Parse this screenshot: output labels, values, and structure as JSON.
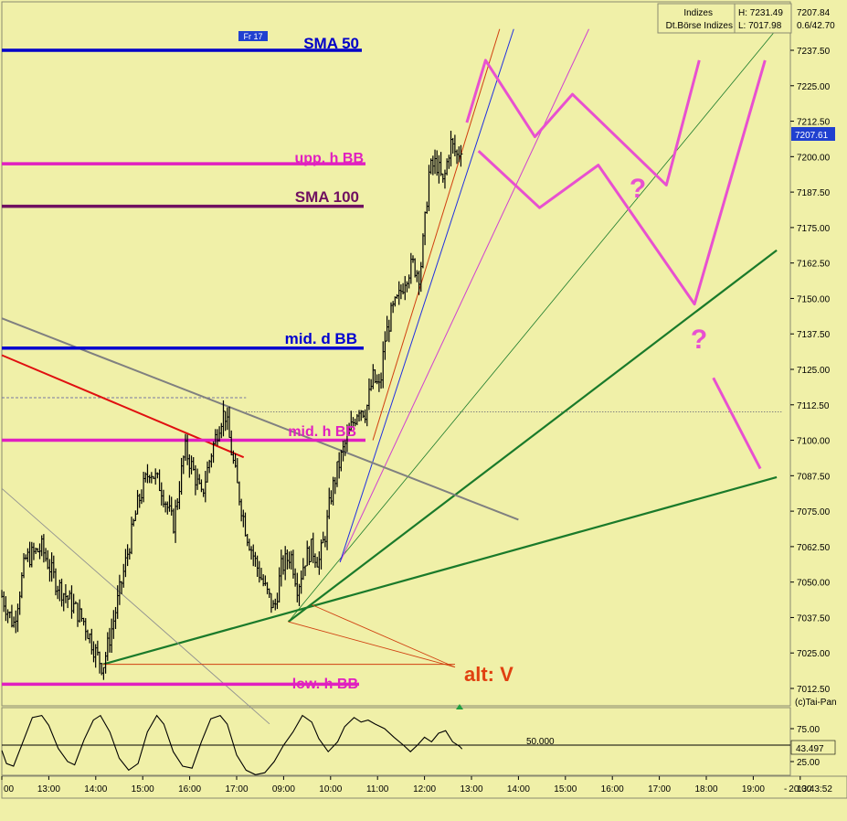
{
  "header": {
    "instrument": "Indizes",
    "exchange": "Dt.Börse Indizes",
    "high": "H: 7231.49",
    "low": "L: 7017.98",
    "last": "7207.84",
    "change": "0.6/42.70",
    "day_marker": "Fr 17",
    "credit": "(c)Tai-Pan",
    "clock": "13:43:52",
    "axis_dash": "-"
  },
  "colors": {
    "background": "#f0f0a8",
    "sma50": "#0000c8",
    "sma100": "#701060",
    "bollinger_hourly": "#e020c0",
    "bollinger_daily": "#0000d0",
    "scenario": "#e850d0",
    "trend_green": "#1a7a2a",
    "alt_v": "#e04010",
    "price": "#000000"
  },
  "chart_data": [
    {
      "type": "candlestick",
      "xlabel": "",
      "ylabel": "",
      "y_ticks": [
        7237.5,
        7225.0,
        7212.5,
        7200.0,
        7187.5,
        7175.0,
        7162.5,
        7150.0,
        7137.5,
        7125.0,
        7112.5,
        7100.0,
        7087.5,
        7075.0,
        7062.5,
        7050.0,
        7037.5,
        7025.0,
        7012.5
      ],
      "ylim": [
        7006,
        7242
      ],
      "x_ticks": [
        "00",
        "13:00",
        "14:00",
        "15:00",
        "16:00",
        "17:00",
        "09:00",
        "10:00",
        "11:00",
        "12:00",
        "13:00",
        "14:00",
        "15:00",
        "16:00",
        "17:00",
        "18:00",
        "19:00",
        "20:00"
      ],
      "current_price": "7207.61",
      "current_price_value": 7207.61,
      "price_path": [
        [
          0.0,
          7045
        ],
        [
          0.5,
          7035
        ],
        [
          1.0,
          7058
        ],
        [
          1.7,
          7062
        ],
        [
          2.3,
          7050
        ],
        [
          3.0,
          7042
        ],
        [
          3.5,
          7036
        ],
        [
          4.0,
          7025
        ],
        [
          4.3,
          7020
        ],
        [
          4.8,
          7038
        ],
        [
          5.3,
          7058
        ],
        [
          5.8,
          7078
        ],
        [
          6.3,
          7090
        ],
        [
          6.8,
          7083
        ],
        [
          7.3,
          7070
        ],
        [
          7.8,
          7097
        ],
        [
          8.2,
          7088
        ],
        [
          8.5,
          7080
        ],
        [
          8.9,
          7095
        ],
        [
          9.3,
          7107
        ],
        [
          9.5,
          7110
        ],
        [
          10.0,
          7085
        ],
        [
          10.4,
          7068
        ],
        [
          10.8,
          7057
        ],
        [
          11.2,
          7048
        ],
        [
          11.6,
          7040
        ],
        [
          11.9,
          7055
        ],
        [
          12.3,
          7060
        ],
        [
          12.6,
          7048
        ],
        [
          12.9,
          7058
        ],
        [
          13.2,
          7062
        ],
        [
          13.5,
          7057
        ],
        [
          13.8,
          7068
        ],
        [
          14.0,
          7080
        ],
        [
          14.3,
          7090
        ],
        [
          14.6,
          7098
        ],
        [
          14.9,
          7105
        ],
        [
          15.2,
          7112
        ],
        [
          15.5,
          7110
        ],
        [
          15.8,
          7122
        ],
        [
          16.1,
          7118
        ],
        [
          16.3,
          7135
        ],
        [
          16.6,
          7145
        ],
        [
          16.9,
          7150
        ],
        [
          17.2,
          7158
        ],
        [
          17.5,
          7162
        ],
        [
          17.8,
          7158
        ],
        [
          18.0,
          7175
        ],
        [
          18.2,
          7195
        ],
        [
          18.5,
          7198
        ],
        [
          18.8,
          7190
        ],
        [
          19.1,
          7205
        ],
        [
          19.4,
          7200
        ],
        [
          19.6,
          7205
        ]
      ],
      "levels": [
        {
          "name": "SMA 50",
          "value": 7237.5
        },
        {
          "name": "upp. h BB",
          "value": 7197.5
        },
        {
          "name": "SMA 100",
          "value": 7182.5
        },
        {
          "name": "mid. d BB",
          "value": 7132.5
        },
        {
          "name": "mid. h BB",
          "value": 7100.0
        },
        {
          "name": "low. h BB",
          "value": 7014.0
        }
      ],
      "annotations": [
        "?",
        "?",
        "alt: V"
      ],
      "scenario_paths": [
        [
          [
            19.8,
            7212
          ],
          [
            20.6,
            7234
          ],
          [
            22.7,
            7207
          ],
          [
            24.3,
            7222
          ],
          [
            28.3,
            7190
          ],
          [
            29.7,
            7234
          ]
        ],
        [
          [
            20.3,
            7202
          ],
          [
            22.9,
            7182
          ],
          [
            25.4,
            7197
          ],
          [
            29.5,
            7148
          ],
          [
            32.5,
            7234
          ]
        ],
        [
          [
            30.3,
            7122
          ],
          [
            32.3,
            7090
          ]
        ]
      ],
      "trend_lines": [
        {
          "from": [
            4.3,
            7021
          ],
          "to": [
            33.0,
            7087
          ]
        },
        {
          "from": [
            12.2,
            7036
          ],
          "to": [
            33.0,
            7167
          ]
        },
        {
          "from": [
            12.2,
            7036
          ],
          "to": [
            33.0,
            7245
          ]
        },
        {
          "from": [
            14.4,
            7057
          ],
          "to": [
            25.0,
            7245
          ]
        },
        {
          "from": [
            14.4,
            7057
          ],
          "to": [
            21.8,
            7245
          ]
        },
        {
          "from": [
            15.8,
            7100
          ],
          "to": [
            21.2,
            7245
          ]
        },
        {
          "from": [
            0.0,
            7143
          ],
          "to": [
            22.0,
            7072
          ]
        },
        {
          "from": [
            0.0,
            7130
          ],
          "to": [
            10.3,
            7094
          ]
        },
        {
          "from": [
            0.0,
            7083
          ],
          "to": [
            11.4,
            7000
          ]
        },
        {
          "from": [
            13.2,
            7042
          ],
          "to": [
            19.3,
            7020
          ]
        },
        {
          "from": [
            12.2,
            7036
          ],
          "to": [
            19.3,
            7020
          ]
        },
        {
          "from": [
            4.3,
            7021
          ],
          "to": [
            19.3,
            7021
          ]
        }
      ],
      "ref_lines": [
        {
          "style": "dash",
          "value": 7115,
          "from": 0.0,
          "to": 10.4
        },
        {
          "style": "dot",
          "value": 7110,
          "from": 10.4,
          "to": 33.2
        }
      ]
    },
    {
      "type": "line",
      "xlabel": "",
      "ylabel": "",
      "y_ticks": [
        75.0,
        25.0
      ],
      "ylim": [
        0,
        100
      ],
      "reference_level": "50.000",
      "reference_value": 50,
      "current_value": "43.497",
      "values": [
        [
          0.0,
          42
        ],
        [
          0.2,
          22
        ],
        [
          0.5,
          18
        ],
        [
          0.9,
          55
        ],
        [
          1.3,
          92
        ],
        [
          1.7,
          95
        ],
        [
          2.0,
          80
        ],
        [
          2.4,
          45
        ],
        [
          2.8,
          25
        ],
        [
          3.1,
          20
        ],
        [
          3.5,
          58
        ],
        [
          3.9,
          88
        ],
        [
          4.2,
          95
        ],
        [
          4.6,
          70
        ],
        [
          5.0,
          30
        ],
        [
          5.4,
          12
        ],
        [
          5.8,
          22
        ],
        [
          6.2,
          70
        ],
        [
          6.6,
          95
        ],
        [
          6.9,
          82
        ],
        [
          7.3,
          40
        ],
        [
          7.7,
          18
        ],
        [
          8.1,
          15
        ],
        [
          8.5,
          55
        ],
        [
          8.9,
          90
        ],
        [
          9.3,
          95
        ],
        [
          9.6,
          82
        ],
        [
          10.0,
          35
        ],
        [
          10.4,
          12
        ],
        [
          10.8,
          5
        ],
        [
          11.2,
          8
        ],
        [
          11.6,
          25
        ],
        [
          12.0,
          50
        ],
        [
          12.4,
          70
        ],
        [
          12.8,
          95
        ],
        [
          13.2,
          85
        ],
        [
          13.5,
          60
        ],
        [
          13.9,
          40
        ],
        [
          14.3,
          55
        ],
        [
          14.6,
          78
        ],
        [
          15.0,
          92
        ],
        [
          15.3,
          85
        ],
        [
          15.6,
          88
        ],
        [
          15.9,
          82
        ],
        [
          16.3,
          75
        ],
        [
          16.7,
          62
        ],
        [
          17.1,
          50
        ],
        [
          17.4,
          40
        ],
        [
          17.7,
          50
        ],
        [
          18.0,
          62
        ],
        [
          18.3,
          55
        ],
        [
          18.6,
          68
        ],
        [
          18.9,
          72
        ],
        [
          19.2,
          55
        ],
        [
          19.5,
          48
        ],
        [
          19.6,
          44
        ]
      ]
    }
  ]
}
